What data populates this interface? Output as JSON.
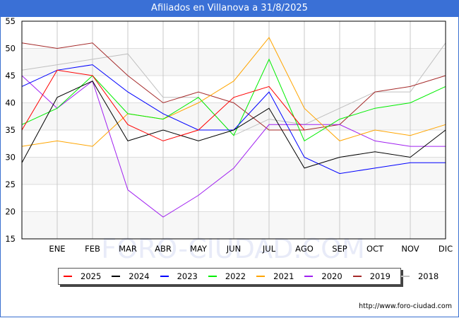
{
  "header": {
    "title": "Afiliados en Villanova a 31/8/2025"
  },
  "credit": "http://www.foro-ciudad.com",
  "watermark": "FORO-CIUDAD.COM",
  "chart_data": {
    "type": "line",
    "title": "Afiliados en Villanova a 31/8/2025",
    "categories": [
      "",
      "ENE",
      "FEB",
      "MAR",
      "ABR",
      "MAY",
      "JUN",
      "JUL",
      "AGO",
      "SEP",
      "OCT",
      "NOV",
      "DIC"
    ],
    "ylim": [
      15,
      55
    ],
    "yticks": [
      15,
      20,
      25,
      30,
      35,
      40,
      45,
      50,
      55
    ],
    "grid": true,
    "legend_position": "bottom",
    "series": [
      {
        "name": "2025",
        "color": "#ff0000",
        "values": [
          35,
          46,
          45,
          36,
          33,
          35,
          41,
          43,
          35,
          null,
          null,
          null,
          null
        ]
      },
      {
        "name": "2024",
        "color": "#000000",
        "values": [
          29,
          41,
          44,
          33,
          35,
          33,
          35,
          39,
          28,
          30,
          31,
          30,
          35
        ]
      },
      {
        "name": "2023",
        "color": "#0000ff",
        "values": [
          43,
          46,
          47,
          42,
          38,
          35,
          35,
          42,
          30,
          27,
          28,
          29,
          29
        ]
      },
      {
        "name": "2022",
        "color": "#00ee00",
        "values": [
          36,
          39,
          45,
          38,
          37,
          41,
          34,
          48,
          33,
          37,
          39,
          40,
          43
        ]
      },
      {
        "name": "2021",
        "color": "#ffa500",
        "values": [
          32,
          33,
          32,
          38,
          37,
          40,
          44,
          52,
          39,
          33,
          35,
          34,
          36
        ]
      },
      {
        "name": "2020",
        "color": "#a020f0",
        "values": [
          45,
          39,
          44,
          24,
          19,
          23,
          28,
          36,
          36,
          36,
          33,
          32,
          32
        ]
      },
      {
        "name": "2019",
        "color": "#a52a2a",
        "values": [
          51,
          50,
          51,
          45,
          40,
          42,
          40,
          35,
          35,
          36,
          42,
          43,
          45
        ]
      },
      {
        "name": "2018",
        "color": "#c0c0c0",
        "values": [
          46,
          47,
          48,
          49,
          41,
          41,
          34,
          37,
          36,
          39,
          42,
          42,
          51
        ]
      }
    ]
  }
}
